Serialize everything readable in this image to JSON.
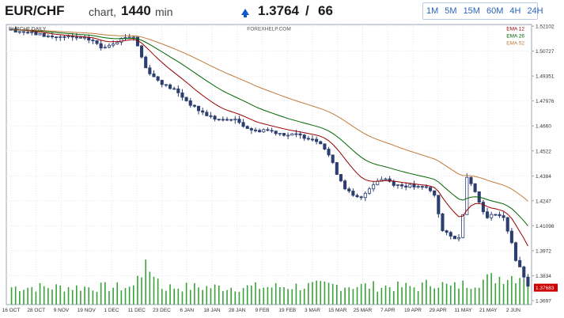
{
  "header": {
    "symbol": "EUR/CHF",
    "chart_label": "chart,",
    "timeframe_value": "1440",
    "timeframe_unit": "min",
    "price": "1.3764",
    "separator": "/",
    "spread": "66",
    "timeframes": [
      "1M",
      "5M",
      "15M",
      "60M",
      "4H",
      "24H"
    ]
  },
  "chart_data": {
    "type": "candlestick",
    "title": "EURCHF DAILY",
    "watermark": "FOREXHELP.COM",
    "ylim": [
      1.3697,
      1.52102
    ],
    "y_ticks": [
      "1.52102",
      "1.50727",
      "1.49351",
      "1.47976",
      "1.4660",
      "1.4522",
      "1.4384",
      "1.4247",
      "1.41098",
      "1.3972",
      "1.3834",
      "1.3697"
    ],
    "last_price_label": "1.37683",
    "last_price": 1.37683,
    "x_labels": [
      "16 OCT",
      "28 OCT",
      "9 NOV",
      "19 NOV",
      "1 DEC",
      "11 DEC",
      "23 DEC",
      "6 JAN",
      "18 JAN",
      "28 JAN",
      "9 FEB",
      "19 FEB",
      "3 MAR",
      "15 MAR",
      "25 MAR",
      "7 APR",
      "19 APR",
      "29 APR",
      "11 MAY",
      "21 MAY",
      "2 JUN"
    ],
    "legend": [
      {
        "name": "EMA 12",
        "color": "#990000"
      },
      {
        "name": "EMA 26",
        "color": "#006600"
      },
      {
        "name": "EMA 52",
        "color": "#c07a3a"
      }
    ],
    "candle_color": "#2c3e70",
    "volume_color": "#3aa23a",
    "legend_position": "top-right",
    "grid": true,
    "close_anchors": [
      [
        0,
        1.519
      ],
      [
        5,
        1.517
      ],
      [
        10,
        1.515
      ],
      [
        14,
        1.5148
      ],
      [
        18,
        1.514
      ],
      [
        20,
        1.513
      ],
      [
        22,
        1.509
      ],
      [
        24,
        1.511
      ],
      [
        26,
        1.513
      ],
      [
        28,
        1.515
      ],
      [
        30,
        1.5152
      ],
      [
        31,
        1.51
      ],
      [
        33,
        1.498
      ],
      [
        35,
        1.493
      ],
      [
        38,
        1.488
      ],
      [
        40,
        1.486
      ],
      [
        42,
        1.482
      ],
      [
        45,
        1.476
      ],
      [
        48,
        1.472
      ],
      [
        50,
        1.47
      ],
      [
        52,
        1.469
      ],
      [
        54,
        1.47
      ],
      [
        56,
        1.468
      ],
      [
        58,
        1.465
      ],
      [
        60,
        1.463
      ],
      [
        62,
        1.464
      ],
      [
        64,
        1.463
      ],
      [
        66,
        1.462
      ],
      [
        68,
        1.461
      ],
      [
        70,
        1.461
      ],
      [
        72,
        1.46
      ],
      [
        74,
        1.459
      ],
      [
        76,
        1.457
      ],
      [
        78,
        1.45
      ],
      [
        80,
        1.44
      ],
      [
        82,
        1.432
      ],
      [
        84,
        1.427
      ],
      [
        86,
        1.426
      ],
      [
        88,
        1.432
      ],
      [
        90,
        1.436
      ],
      [
        92,
        1.437
      ],
      [
        94,
        1.434
      ],
      [
        96,
        1.433
      ],
      [
        98,
        1.433
      ],
      [
        100,
        1.432
      ],
      [
        102,
        1.432
      ],
      [
        104,
        1.428
      ],
      [
        106,
        1.408
      ],
      [
        108,
        1.405
      ],
      [
        110,
        1.404
      ],
      [
        111,
        1.418
      ],
      [
        112,
        1.438
      ],
      [
        113,
        1.435
      ],
      [
        115,
        1.424
      ],
      [
        117,
        1.415
      ],
      [
        119,
        1.418
      ],
      [
        121,
        1.415
      ],
      [
        123,
        1.402
      ],
      [
        124,
        1.392
      ],
      [
        126,
        1.383
      ],
      [
        127,
        1.3768
      ]
    ],
    "volume_anchors": [
      [
        0,
        1
      ],
      [
        30,
        1
      ],
      [
        31,
        1.9
      ],
      [
        33,
        2.0
      ],
      [
        35,
        1.9
      ],
      [
        37,
        1.0
      ],
      [
        60,
        1
      ],
      [
        80,
        1.1
      ],
      [
        100,
        1
      ],
      [
        104,
        1.3
      ],
      [
        108,
        1.0
      ],
      [
        120,
        1.6
      ],
      [
        127,
        1.7
      ]
    ]
  }
}
